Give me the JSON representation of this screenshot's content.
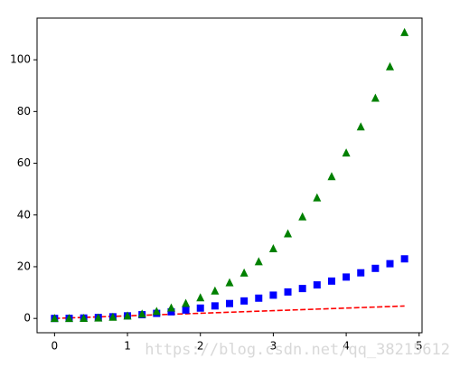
{
  "chart_data": {
    "type": "line-marker",
    "x": [
      0,
      0.2,
      0.4,
      0.6,
      0.8,
      1,
      1.2,
      1.4,
      1.6,
      1.8,
      2,
      2.2,
      2.4,
      2.6,
      2.8,
      3,
      3.2,
      3.4,
      3.6,
      3.8,
      4,
      4.2,
      4.4,
      4.6,
      4.8
    ],
    "series": [
      {
        "color": "#ff0000",
        "style": "dashed",
        "values": [
          0,
          0.2,
          0.4,
          0.6,
          0.8,
          1,
          1.2,
          1.4,
          1.6,
          1.8,
          2,
          2.2,
          2.4,
          2.6,
          2.8,
          3,
          3.2,
          3.4,
          3.6,
          3.8,
          4,
          4.2,
          4.4,
          4.6,
          4.8
        ]
      },
      {
        "color": "#0000ff",
        "style": "square",
        "values": [
          0,
          0.04,
          0.16,
          0.36,
          0.64,
          1,
          1.44,
          1.96,
          2.56,
          3.24,
          4,
          4.84,
          5.76,
          6.76,
          7.84,
          9,
          10.24,
          11.56,
          12.96,
          14.44,
          16,
          17.64,
          19.36,
          21.16,
          23.04
        ]
      },
      {
        "color": "#008000",
        "style": "triangle",
        "values": [
          0,
          0.008,
          0.064,
          0.216,
          0.512,
          1,
          1.728,
          2.744,
          4.096,
          5.832,
          8,
          10.648,
          13.824,
          17.576,
          21.952,
          27,
          32.768,
          39.304,
          46.656,
          54.872,
          64,
          74.088,
          85.184,
          97.336,
          110.592
        ]
      }
    ],
    "xlim": [
      -0.24,
      5.04
    ],
    "xticks": [
      0,
      1,
      2,
      3,
      4,
      5
    ],
    "ylim": [
      -5.53,
      116.12
    ],
    "yticks": [
      0,
      20,
      40,
      60,
      80,
      100
    ],
    "grid": false,
    "watermark": "https://blog.csdn.net/qq_38215612"
  }
}
